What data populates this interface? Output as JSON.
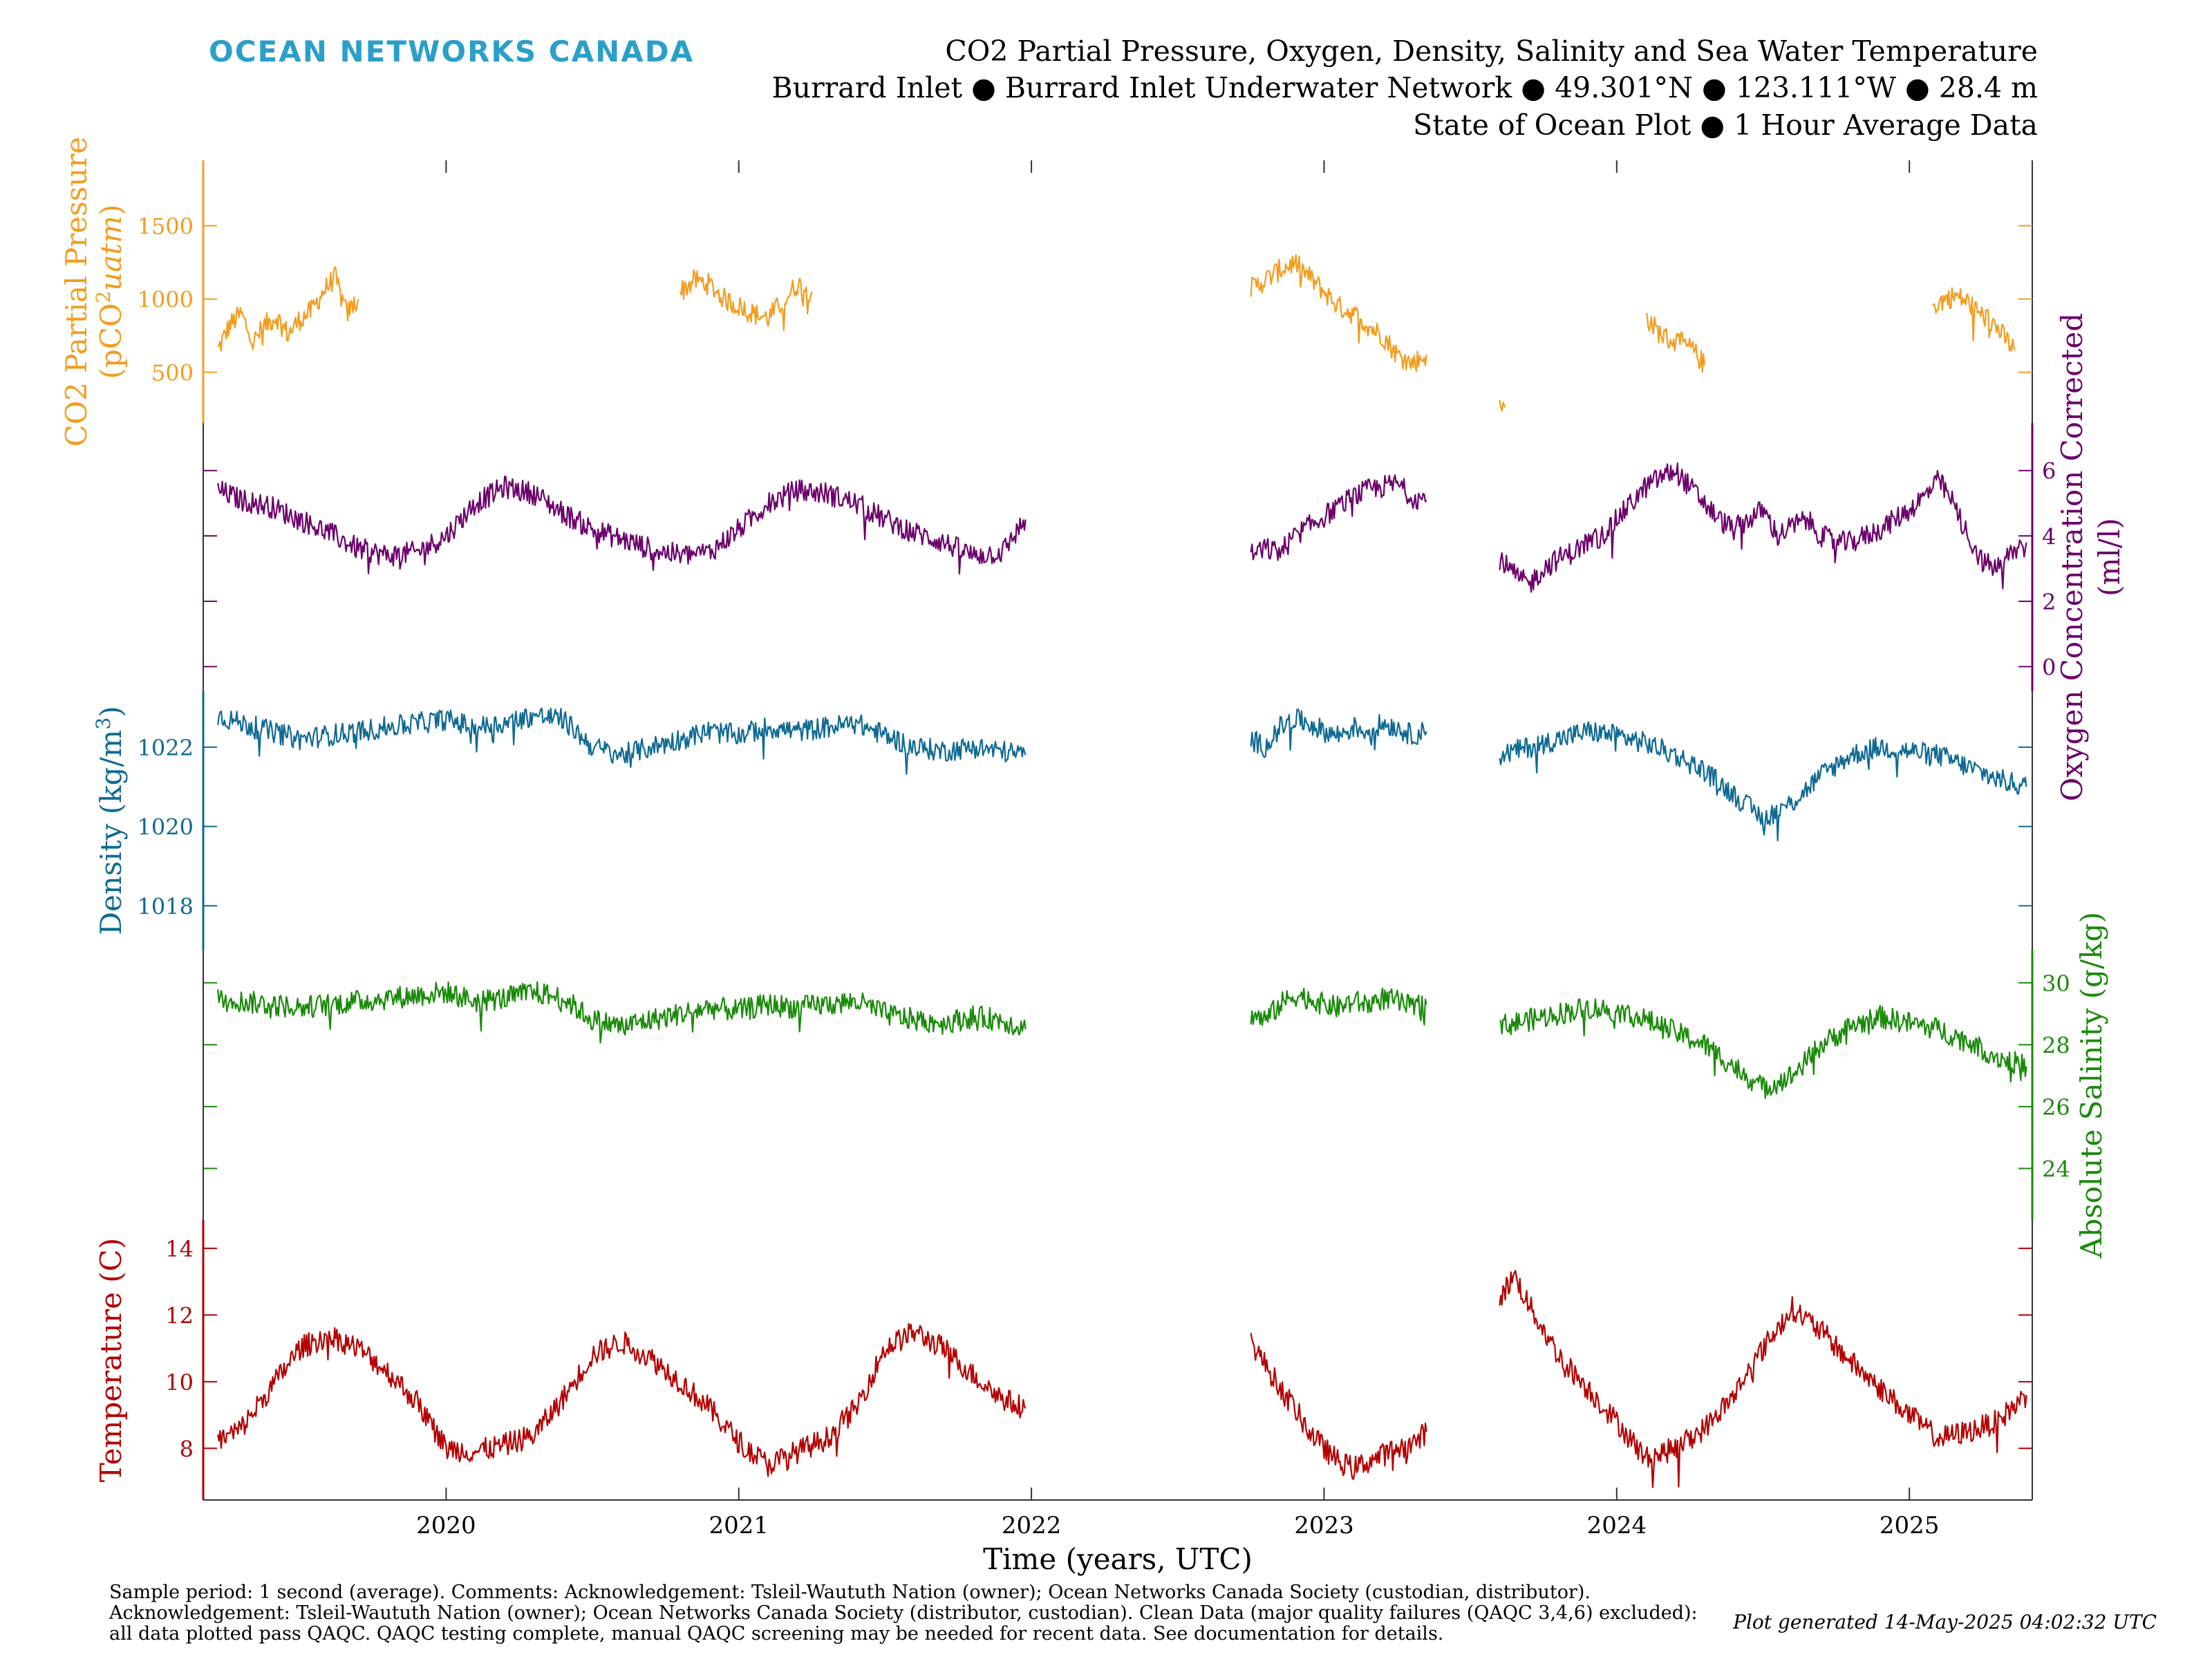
{
  "header": {
    "brand": "OCEAN NETWORKS CANADA",
    "title_line1": "CO2 Partial Pressure, Oxygen, Density, Salinity and Sea Water Temperature",
    "title_line2": "Burrard Inlet ● Burrard Inlet Underwater Network ● 49.301°N ● 123.111°W ● 28.4 m",
    "title_line3": "State of Ocean Plot ● 1 Hour Average Data"
  },
  "footer": {
    "line1": "Sample period: 1 second (average). Comments: Acknowledgement: Tsleil-Waututh Nation (owner); Ocean Networks Canada Society (custodian, distributor).",
    "line2": "Acknowledgement: Tsleil-Waututh Nation (owner); Ocean Networks Canada Society (distributor, custodian). Clean Data (major quality failures (QAQC 3,4,6) excluded):",
    "line3": "all data plotted pass QAQC. QAQC testing complete, manual QAQC screening may be needed for recent data. See documentation for details.",
    "generated": "Plot generated 14-May-2025 04:02:32 UTC"
  },
  "chart_data": {
    "type": "line",
    "xlabel": "Time (years, UTC)",
    "xlim": [
      2019.17,
      2025.42
    ],
    "x_ticks": [
      "2020",
      "2021",
      "2022",
      "2023",
      "2024",
      "2025"
    ],
    "x_tick_values": [
      2020,
      2021,
      2022,
      2023,
      2024,
      2025
    ],
    "grid": false,
    "panels": [
      {
        "name": "co2",
        "ylabel_line1": "CO2 Partial Pressure",
        "ylabel_line2": "(pCO",
        "ylabel_sup": "2",
        "ylabel_line2_unit": "uatm",
        "ylabel_line2_end": ")",
        "axis_side": "left",
        "color": "#f39c1f",
        "ylim": [
          210,
          1890
        ],
        "ticks": [
          500,
          1000,
          1500
        ],
        "series": [
          {
            "x": [
              2019.22,
              2019.26,
              2019.3,
              2019.34,
              2019.38,
              2019.42,
              2019.46,
              2019.5,
              2019.54,
              2019.58,
              2019.62,
              2019.66,
              2019.7
            ],
            "y": [
              650,
              820,
              900,
              700,
              820,
              880,
              760,
              860,
              920,
              1050,
              1150,
              900,
              1000
            ]
          },
          {
            "x": [
              2020.8,
              2020.85,
              2020.9,
              2020.95,
              2021.0,
              2021.05,
              2021.1,
              2021.15,
              2021.2,
              2021.25
            ],
            "y": [
              1050,
              1130,
              1100,
              1000,
              950,
              900,
              870,
              980,
              1100,
              1050
            ]
          },
          {
            "x": [
              2022.75,
              2022.8,
              2022.85,
              2022.9,
              2022.95,
              2023.0,
              2023.05,
              2023.1,
              2023.15,
              2023.2,
              2023.25,
              2023.3,
              2023.35
            ],
            "y": [
              1070,
              1130,
              1200,
              1250,
              1150,
              1050,
              950,
              900,
              820,
              750,
              620,
              560,
              620
            ]
          },
          {
            "x": [
              2023.6,
              2023.62
            ],
            "y": [
              250,
              260
            ]
          },
          {
            "x": [
              2024.1,
              2024.14,
              2024.18,
              2024.22,
              2024.26,
              2024.3
            ],
            "y": [
              880,
              780,
              720,
              700,
              650,
              550
            ]
          },
          {
            "x": [
              2025.08,
              2025.12,
              2025.16,
              2025.2,
              2025.24,
              2025.28,
              2025.32,
              2025.36
            ],
            "y": [
              950,
              1000,
              1020,
              980,
              900,
              850,
              750,
              650
            ]
          }
        ]
      },
      {
        "name": "oxygen",
        "ylabel_line1": "Oxygen Concentration Corrected",
        "ylabel_line2": "(ml/l)",
        "axis_side": "right",
        "color": "#6b006b",
        "ylim": [
          -0.5,
          7.2
        ],
        "ticks": [
          0,
          2,
          4,
          6
        ],
        "series": [
          {
            "x": [
              2019.22,
              2019.3,
              2019.4,
              2019.5,
              2019.6,
              2019.7,
              2019.8,
              2019.9,
              2020.0,
              2020.1,
              2020.2,
              2020.3,
              2020.4,
              2020.5,
              2020.6,
              2020.7,
              2020.8,
              2020.9,
              2021.0,
              2021.1,
              2021.2,
              2021.3,
              2021.4,
              2021.5,
              2021.6,
              2021.7,
              2021.8,
              2021.9,
              2021.98
            ],
            "y": [
              5.4,
              5.1,
              4.9,
              4.5,
              4.1,
              3.6,
              3.4,
              3.5,
              4.0,
              5.0,
              5.5,
              5.3,
              4.7,
              4.2,
              3.9,
              3.6,
              3.4,
              3.5,
              4.2,
              5.0,
              5.4,
              5.3,
              5.0,
              4.5,
              4.1,
              3.8,
              3.4,
              3.5,
              4.5
            ]
          },
          {
            "x": [
              2022.75,
              2022.8,
              2022.85,
              2022.9,
              2022.95,
              2023.0,
              2023.05,
              2023.1,
              2023.15,
              2023.2,
              2023.25,
              2023.3,
              2023.35
            ],
            "y": [
              3.4,
              3.6,
              3.5,
              4.0,
              4.3,
              4.6,
              4.9,
              5.2,
              5.4,
              5.5,
              5.6,
              5.2,
              5.1
            ]
          },
          {
            "x": [
              2023.6,
              2023.65,
              2023.7,
              2023.75,
              2023.8,
              2023.85,
              2023.9,
              2023.95,
              2024.0,
              2024.05,
              2024.1,
              2024.15,
              2024.2,
              2024.25,
              2024.3,
              2024.35,
              2024.4,
              2024.45,
              2024.5,
              2024.55,
              2024.6,
              2024.65,
              2024.7,
              2024.75,
              2024.8,
              2024.85,
              2024.9,
              2024.95,
              2025.0,
              2025.05,
              2025.1,
              2025.15,
              2025.2,
              2025.25,
              2025.3,
              2025.35,
              2025.4
            ],
            "y": [
              3.3,
              2.8,
              2.5,
              3.0,
              3.3,
              3.5,
              3.8,
              4.0,
              4.5,
              5.0,
              5.5,
              5.8,
              6.0,
              5.5,
              5.0,
              4.5,
              4.2,
              4.5,
              4.8,
              4.0,
              4.3,
              4.5,
              4.0,
              3.8,
              3.8,
              4.0,
              4.2,
              4.5,
              4.8,
              5.2,
              5.7,
              5.0,
              4.0,
              3.2,
              3.0,
              3.5,
              3.8
            ]
          }
        ]
      },
      {
        "name": "density",
        "ylabel_line1": "Density (kg/m",
        "ylabel_sup": "3",
        "ylabel_line1_end": ")",
        "axis_side": "left",
        "color": "#0f6a93",
        "ylim": [
          1017.1,
          1023.2
        ],
        "ticks": [
          1018,
          1020,
          1022
        ],
        "series": [
          {
            "x": [
              2019.22,
              2019.3,
              2019.4,
              2019.5,
              2019.6,
              2019.7,
              2019.8,
              2019.9,
              2020.0,
              2020.1,
              2020.2,
              2020.3,
              2020.4,
              2020.5,
              2020.6,
              2020.7,
              2020.8,
              2020.9,
              2021.0,
              2021.1,
              2021.2,
              2021.3,
              2021.4,
              2021.5,
              2021.6,
              2021.7,
              2021.8,
              2021.9,
              2021.98
            ],
            "y": [
              1022.8,
              1022.6,
              1022.4,
              1022.2,
              1022.3,
              1022.4,
              1022.5,
              1022.6,
              1022.7,
              1022.5,
              1022.6,
              1022.8,
              1022.7,
              1022.0,
              1021.8,
              1022.0,
              1022.2,
              1022.4,
              1022.3,
              1022.5,
              1022.4,
              1022.5,
              1022.6,
              1022.3,
              1022.0,
              1021.9,
              1022.0,
              1021.9,
              1021.8
            ]
          },
          {
            "x": [
              2022.75,
              2022.8,
              2022.85,
              2022.9,
              2022.95,
              2023.0,
              2023.05,
              2023.1,
              2023.15,
              2023.2,
              2023.25,
              2023.3,
              2023.35
            ],
            "y": [
              1022.2,
              1022.0,
              1022.5,
              1022.7,
              1022.6,
              1022.4,
              1022.3,
              1022.5,
              1022.4,
              1022.6,
              1022.5,
              1022.3,
              1022.4
            ]
          },
          {
            "x": [
              2023.6,
              2023.7,
              2023.8,
              2023.9,
              2024.0,
              2024.1,
              2024.2,
              2024.3,
              2024.4,
              2024.5,
              2024.6,
              2024.7,
              2024.8,
              2024.9,
              2025.0,
              2025.1,
              2025.2,
              2025.3,
              2025.4
            ],
            "y": [
              1021.8,
              1022.0,
              1022.2,
              1022.4,
              1022.3,
              1022.1,
              1021.8,
              1021.4,
              1020.8,
              1020.2,
              1020.6,
              1021.3,
              1021.8,
              1022.0,
              1021.9,
              1021.8,
              1021.5,
              1021.2,
              1021.0
            ]
          }
        ]
      },
      {
        "name": "salinity",
        "ylabel_line1": "Absolute Salinity (g/kg)",
        "axis_side": "right",
        "color": "#1a8a0a",
        "ylim": [
          22.6,
          30.8
        ],
        "ticks": [
          24,
          26,
          28,
          30
        ],
        "series": [
          {
            "x": [
              2019.22,
              2019.3,
              2019.4,
              2019.5,
              2019.6,
              2019.7,
              2019.8,
              2019.9,
              2020.0,
              2020.1,
              2020.2,
              2020.3,
              2020.4,
              2020.5,
              2020.6,
              2020.7,
              2020.8,
              2020.9,
              2021.0,
              2021.1,
              2021.2,
              2021.3,
              2021.4,
              2021.5,
              2021.6,
              2021.7,
              2021.8,
              2021.9,
              2021.98
            ],
            "y": [
              29.6,
              29.4,
              29.3,
              29.2,
              29.3,
              29.4,
              29.5,
              29.6,
              29.7,
              29.4,
              29.5,
              29.7,
              29.5,
              28.8,
              28.6,
              28.8,
              29.0,
              29.2,
              29.1,
              29.3,
              29.2,
              29.3,
              29.4,
              29.0,
              28.8,
              28.7,
              28.9,
              28.8,
              28.5
            ]
          },
          {
            "x": [
              2022.75,
              2022.8,
              2022.85,
              2022.9,
              2022.95,
              2023.0,
              2023.05,
              2023.1,
              2023.15,
              2023.2,
              2023.25,
              2023.3,
              2023.35
            ],
            "y": [
              29.0,
              28.8,
              29.3,
              29.6,
              29.5,
              29.3,
              29.2,
              29.4,
              29.3,
              29.5,
              29.4,
              29.2,
              29.3
            ]
          },
          {
            "x": [
              2023.6,
              2023.7,
              2023.8,
              2023.9,
              2024.0,
              2024.1,
              2024.2,
              2024.3,
              2024.4,
              2024.5,
              2024.6,
              2024.7,
              2024.8,
              2024.9,
              2025.0,
              2025.1,
              2025.2,
              2025.3,
              2025.4
            ],
            "y": [
              28.6,
              28.8,
              29.0,
              29.2,
              29.1,
              28.8,
              28.4,
              28.0,
              27.3,
              26.6,
              27.0,
              28.0,
              28.6,
              28.9,
              28.7,
              28.5,
              28.1,
              27.6,
              27.3
            ]
          }
        ]
      },
      {
        "name": "temperature",
        "ylabel_line1": "Temperature (C)",
        "axis_side": "left",
        "color": "#b30000",
        "ylim": [
          6.7,
          14.6
        ],
        "ticks": [
          8,
          10,
          12,
          14
        ],
        "series": [
          {
            "x": [
              2019.22,
              2019.3,
              2019.4,
              2019.5,
              2019.6,
              2019.7,
              2019.8,
              2019.9,
              2020.0,
              2020.1,
              2020.2,
              2020.3,
              2020.4,
              2020.5,
              2020.6,
              2020.7,
              2020.8,
              2020.9,
              2021.0,
              2021.1,
              2021.2,
              2021.3,
              2021.4,
              2021.5,
              2021.6,
              2021.7,
              2021.8,
              2021.9,
              2021.98
            ],
            "y": [
              8.2,
              8.6,
              9.8,
              11.0,
              11.4,
              11.0,
              10.3,
              9.4,
              8.0,
              7.9,
              8.1,
              8.4,
              9.5,
              10.8,
              11.2,
              10.7,
              10.0,
              9.2,
              8.2,
              7.5,
              7.9,
              8.3,
              9.2,
              11.0,
              11.5,
              11.0,
              10.2,
              9.5,
              9.2
            ]
          },
          {
            "x": [
              2022.75,
              2022.8,
              2022.85,
              2022.9,
              2022.95,
              2023.0,
              2023.05,
              2023.1,
              2023.15,
              2023.2,
              2023.25,
              2023.3,
              2023.35
            ],
            "y": [
              11.2,
              10.5,
              9.8,
              9.2,
              8.5,
              8.0,
              7.6,
              7.4,
              7.6,
              7.8,
              8.0,
              8.1,
              8.5
            ]
          },
          {
            "x": [
              2023.6,
              2023.65,
              2023.7,
              2023.8,
              2023.9,
              2024.0,
              2024.1,
              2024.2,
              2024.3,
              2024.4,
              2024.5,
              2024.6,
              2024.7,
              2024.8,
              2024.9,
              2025.0,
              2025.1,
              2025.2,
              2025.3,
              2025.4
            ],
            "y": [
              12.5,
              13.2,
              12.3,
              10.8,
              9.8,
              8.8,
              7.7,
              8.0,
              8.6,
              9.6,
              11.0,
              12.2,
              11.5,
              10.6,
              9.8,
              9.0,
              8.3,
              8.5,
              8.8,
              9.6
            ]
          }
        ]
      }
    ]
  }
}
